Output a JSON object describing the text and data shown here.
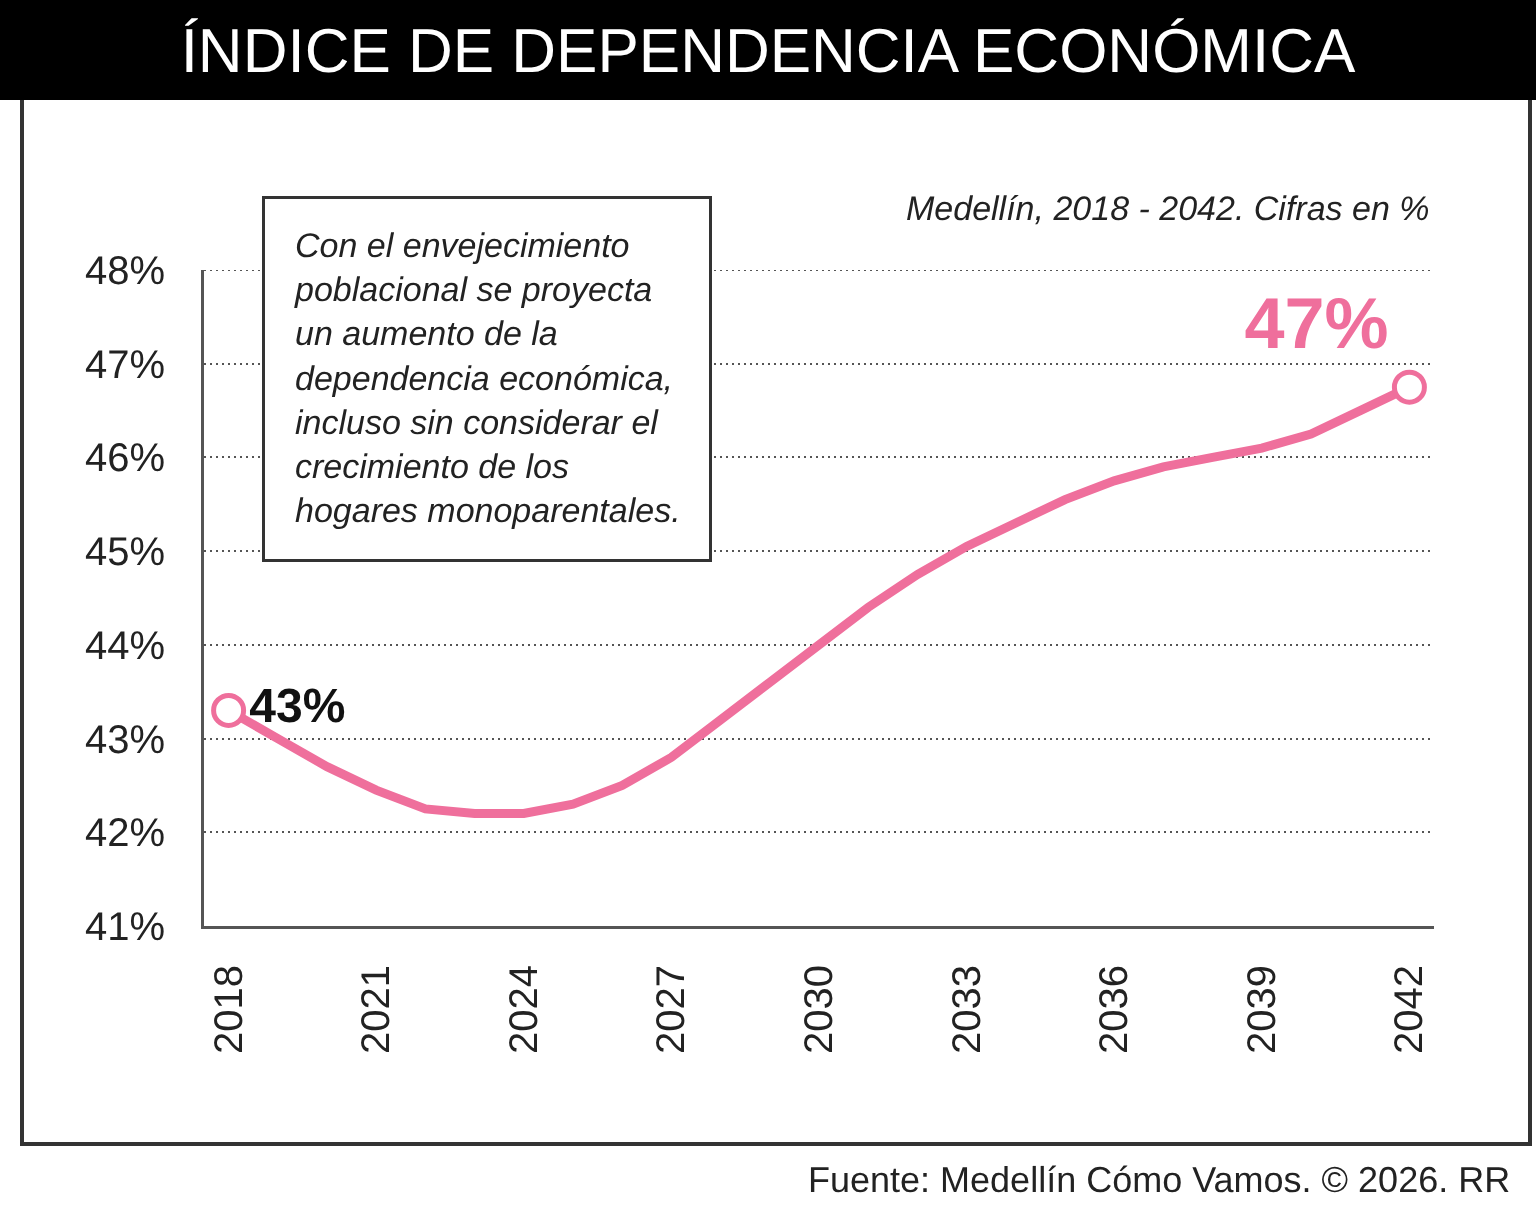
{
  "chart_data": {
    "type": "line",
    "title": "ÍNDICE DE DEPENDENCIA ECONÓMICA",
    "subtitle": "Medellín, 2018 - 2042. Cifras en %",
    "annotations": [
      "Con el envejecimiento\npoblacional se proyecta\nun aumento de la\ndependencia económica,\nincluso sin considerar el\ncrecimiento de los\nhogares monoparentales.",
      "Fuente: Medellín Cómo Vamos. © 2026. RR"
    ],
    "x": [
      2018,
      2019,
      2020,
      2021,
      2022,
      2023,
      2024,
      2025,
      2026,
      2027,
      2028,
      2029,
      2030,
      2031,
      2032,
      2033,
      2034,
      2035,
      2036,
      2037,
      2038,
      2039,
      2040,
      2041,
      2042
    ],
    "series": [
      {
        "color": "#ef6f9c",
        "values": [
          43.3,
          43.0,
          42.7,
          42.45,
          42.25,
          42.2,
          42.2,
          42.3,
          42.5,
          42.8,
          43.2,
          43.6,
          44.0,
          44.4,
          44.75,
          45.05,
          45.3,
          45.55,
          45.75,
          45.9,
          46.0,
          46.1,
          46.25,
          46.5,
          46.75
        ],
        "value_labels": [
          "43%",
          null,
          null,
          null,
          null,
          null,
          null,
          null,
          null,
          null,
          null,
          null,
          null,
          null,
          null,
          null,
          null,
          null,
          null,
          null,
          null,
          null,
          null,
          null,
          "47%"
        ]
      }
    ],
    "xlim": [
      2017.5,
      2042.5
    ],
    "xticks": [
      2018,
      2021,
      2024,
      2027,
      2030,
      2033,
      2036,
      2039,
      2042
    ],
    "ylim": [
      41,
      48
    ],
    "yticks": [
      {
        "value": 41,
        "label": "41%"
      },
      {
        "value": 42,
        "label": "42%"
      },
      {
        "value": 43,
        "label": "43%"
      },
      {
        "value": 44,
        "label": "44%"
      },
      {
        "value": 45,
        "label": "45%"
      },
      {
        "value": 46,
        "label": "46%"
      },
      {
        "value": 47,
        "label": "47%"
      },
      {
        "value": 48,
        "label": "48%"
      }
    ],
    "grid": "y",
    "line_style": "solid"
  }
}
